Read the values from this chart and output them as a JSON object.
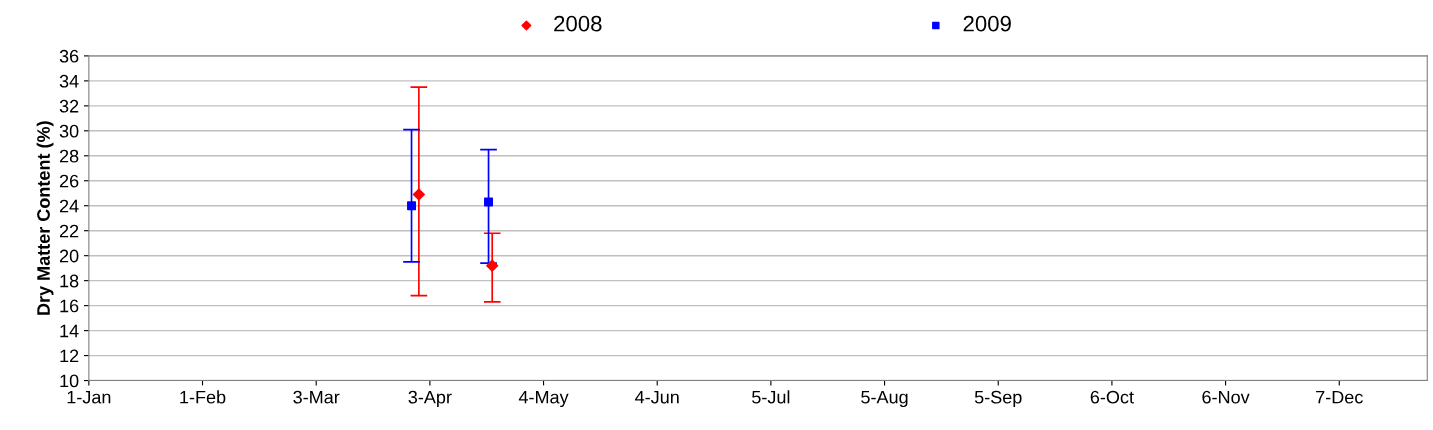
{
  "chart_data": {
    "type": "scatter",
    "ylabel": "Dry Matter Content (%)",
    "series": [
      {
        "name": "2008",
        "color": "#ff0000",
        "marker": "diamond",
        "x": [
          "2008-03-31",
          "2008-04-20"
        ],
        "values": [
          24.9,
          19.2
        ],
        "errors": [
          [
            16.8,
            33.5
          ],
          [
            16.3,
            21.8
          ]
        ]
      },
      {
        "name": "2009",
        "color": "#0000ff",
        "marker": "square",
        "x": [
          "2008-03-29",
          "2008-04-19"
        ],
        "values": [
          24.0,
          24.3
        ],
        "errors": [
          [
            19.5,
            30.1
          ],
          [
            19.4,
            28.5
          ]
        ]
      }
    ],
    "xlim": [
      "2008-01-01",
      "2008-12-31"
    ],
    "xticks": [
      {
        "value": "2008-01-01",
        "label": "1-Jan"
      },
      {
        "value": "2008-02-01",
        "label": "1-Feb"
      },
      {
        "value": "2008-03-03",
        "label": "3-Mar"
      },
      {
        "value": "2008-04-03",
        "label": "3-Apr"
      },
      {
        "value": "2008-05-04",
        "label": "4-May"
      },
      {
        "value": "2008-06-04",
        "label": "4-Jun"
      },
      {
        "value": "2008-07-05",
        "label": "5-Jul"
      },
      {
        "value": "2008-08-05",
        "label": "5-Aug"
      },
      {
        "value": "2008-09-05",
        "label": "5-Sep"
      },
      {
        "value": "2008-10-06",
        "label": "6-Oct"
      },
      {
        "value": "2008-11-06",
        "label": "6-Nov"
      },
      {
        "value": "2008-12-07",
        "label": "7-Dec"
      }
    ],
    "ylim": [
      10,
      36
    ],
    "yticks": [
      10,
      12,
      14,
      16,
      18,
      20,
      22,
      24,
      26,
      28,
      30,
      32,
      34,
      36
    ],
    "grid": "y",
    "legend": "top"
  }
}
